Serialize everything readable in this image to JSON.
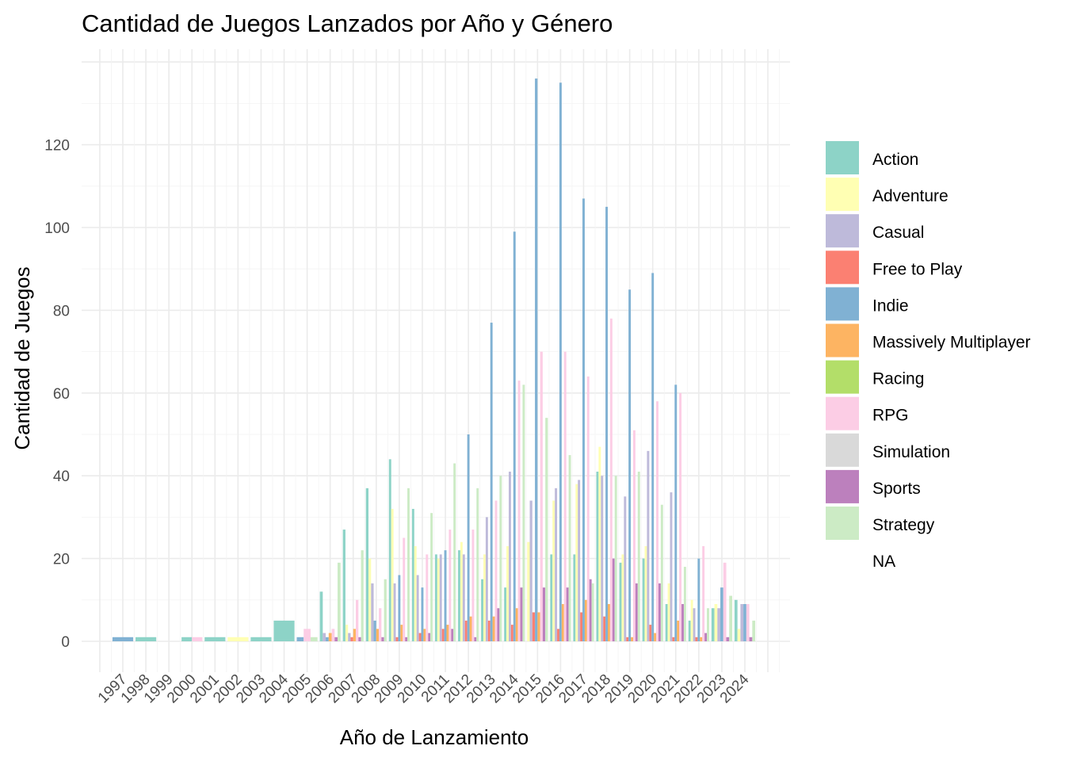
{
  "chart_data": {
    "type": "bar",
    "title": "Cantidad de Juegos Lanzados por Año y Género",
    "xlabel": "Año de Lanzamiento",
    "ylabel": "Cantidad de Juegos",
    "ylim": [
      -5,
      141
    ],
    "y_ticks": [
      0,
      20,
      40,
      60,
      80,
      100,
      120
    ],
    "grid": true,
    "legend_position": "right",
    "categories": [
      "1997",
      "1998",
      "1999",
      "2000",
      "2001",
      "2002",
      "2003",
      "2004",
      "2005",
      "2006",
      "2007",
      "2008",
      "2009",
      "2010",
      "2011",
      "2012",
      "2013",
      "2014",
      "2015",
      "2016",
      "2017",
      "2018",
      "2019",
      "2020",
      "2021",
      "2022",
      "2023",
      "2024"
    ],
    "legend": [
      "Action",
      "Adventure",
      "Casual",
      "Free to Play",
      "Indie",
      "Massively Multiplayer",
      "Racing",
      "RPG",
      "Simulation",
      "Sports",
      "Strategy",
      "NA"
    ],
    "colors": {
      "Action": "#8DD3C7",
      "Adventure": "#FFFFB3",
      "Casual": "#BEBADA",
      "Free to Play": "#FB8072",
      "Indie": "#80B1D3",
      "Massively Multiplayer": "#FDB462",
      "Racing": "#B3DE69",
      "RPG": "#FCCDE5",
      "Simulation": "#D9D9D9",
      "Sports": "#BC80BD",
      "Strategy": "#CCEBC5"
    },
    "series": [
      {
        "name": "Action",
        "values": [
          0,
          1,
          0,
          1,
          1,
          0,
          1,
          5,
          0,
          12,
          27,
          37,
          44,
          32,
          21,
          22,
          15,
          13,
          0,
          21,
          21,
          41,
          19,
          20,
          9,
          5,
          8,
          10
        ]
      },
      {
        "name": "Adventure",
        "values": [
          0,
          0,
          0,
          0,
          0,
          1,
          0,
          0,
          0,
          0,
          4,
          20,
          32,
          23,
          20,
          24,
          21,
          23,
          24,
          34,
          38,
          47,
          21,
          23,
          14,
          10,
          9,
          3
        ]
      },
      {
        "name": "Casual",
        "values": [
          0,
          0,
          0,
          0,
          0,
          0,
          0,
          0,
          0,
          2,
          2,
          14,
          14,
          16,
          21,
          21,
          30,
          41,
          34,
          37,
          39,
          40,
          35,
          46,
          36,
          8,
          8,
          9
        ]
      },
      {
        "name": "Free to Play",
        "values": [
          0,
          0,
          0,
          0,
          0,
          0,
          0,
          0,
          0,
          0,
          1,
          0,
          1,
          2,
          3,
          5,
          5,
          4,
          7,
          3,
          7,
          6,
          1,
          4,
          1,
          1,
          0,
          0
        ]
      },
      {
        "name": "Indie",
        "values": [
          1,
          0,
          0,
          0,
          0,
          0,
          0,
          0,
          1,
          1,
          0,
          5,
          16,
          13,
          22,
          50,
          77,
          99,
          136,
          135,
          107,
          105,
          85,
          89,
          62,
          20,
          13,
          9
        ]
      },
      {
        "name": "Massively Multiplayer",
        "values": [
          0,
          0,
          0,
          0,
          0,
          0,
          0,
          0,
          0,
          2,
          3,
          3,
          4,
          3,
          4,
          6,
          6,
          8,
          7,
          9,
          10,
          9,
          1,
          2,
          5,
          1,
          0,
          0
        ]
      },
      {
        "name": "Racing",
        "values": [
          0,
          0,
          0,
          0,
          0,
          0,
          0,
          0,
          0,
          0,
          0,
          0,
          0,
          0,
          0,
          0,
          0,
          0,
          0,
          0,
          0,
          0,
          0,
          0,
          0,
          0,
          0,
          0
        ]
      },
      {
        "name": "RPG",
        "values": [
          0,
          0,
          0,
          1,
          0,
          0,
          0,
          0,
          3,
          3,
          10,
          8,
          25,
          21,
          27,
          27,
          34,
          63,
          70,
          70,
          64,
          78,
          51,
          58,
          60,
          23,
          19,
          9
        ]
      },
      {
        "name": "Simulation",
        "values": [
          0,
          0,
          0,
          0,
          0,
          0,
          0,
          0,
          0,
          0,
          0,
          0,
          0,
          0,
          0,
          0,
          0,
          0,
          0,
          0,
          0,
          0,
          0,
          0,
          0,
          0,
          0,
          0
        ]
      },
      {
        "name": "Sports",
        "values": [
          0,
          0,
          0,
          0,
          0,
          0,
          0,
          0,
          0,
          1,
          1,
          1,
          1,
          2,
          3,
          1,
          8,
          13,
          13,
          13,
          15,
          20,
          14,
          14,
          9,
          2,
          1,
          1
        ]
      },
      {
        "name": "Strategy",
        "values": [
          0,
          0,
          0,
          0,
          0,
          0,
          0,
          0,
          1,
          19,
          22,
          15,
          37,
          31,
          43,
          37,
          40,
          62,
          54,
          45,
          14,
          40,
          41,
          33,
          18,
          8,
          11,
          5
        ]
      },
      {
        "name": "NA",
        "values": [
          0,
          0,
          0,
          0,
          0,
          0,
          0,
          0,
          0,
          0,
          0,
          0,
          0,
          0,
          0,
          0,
          0,
          0,
          0,
          0,
          0,
          0,
          0,
          0,
          0,
          0,
          0,
          0
        ]
      }
    ]
  }
}
